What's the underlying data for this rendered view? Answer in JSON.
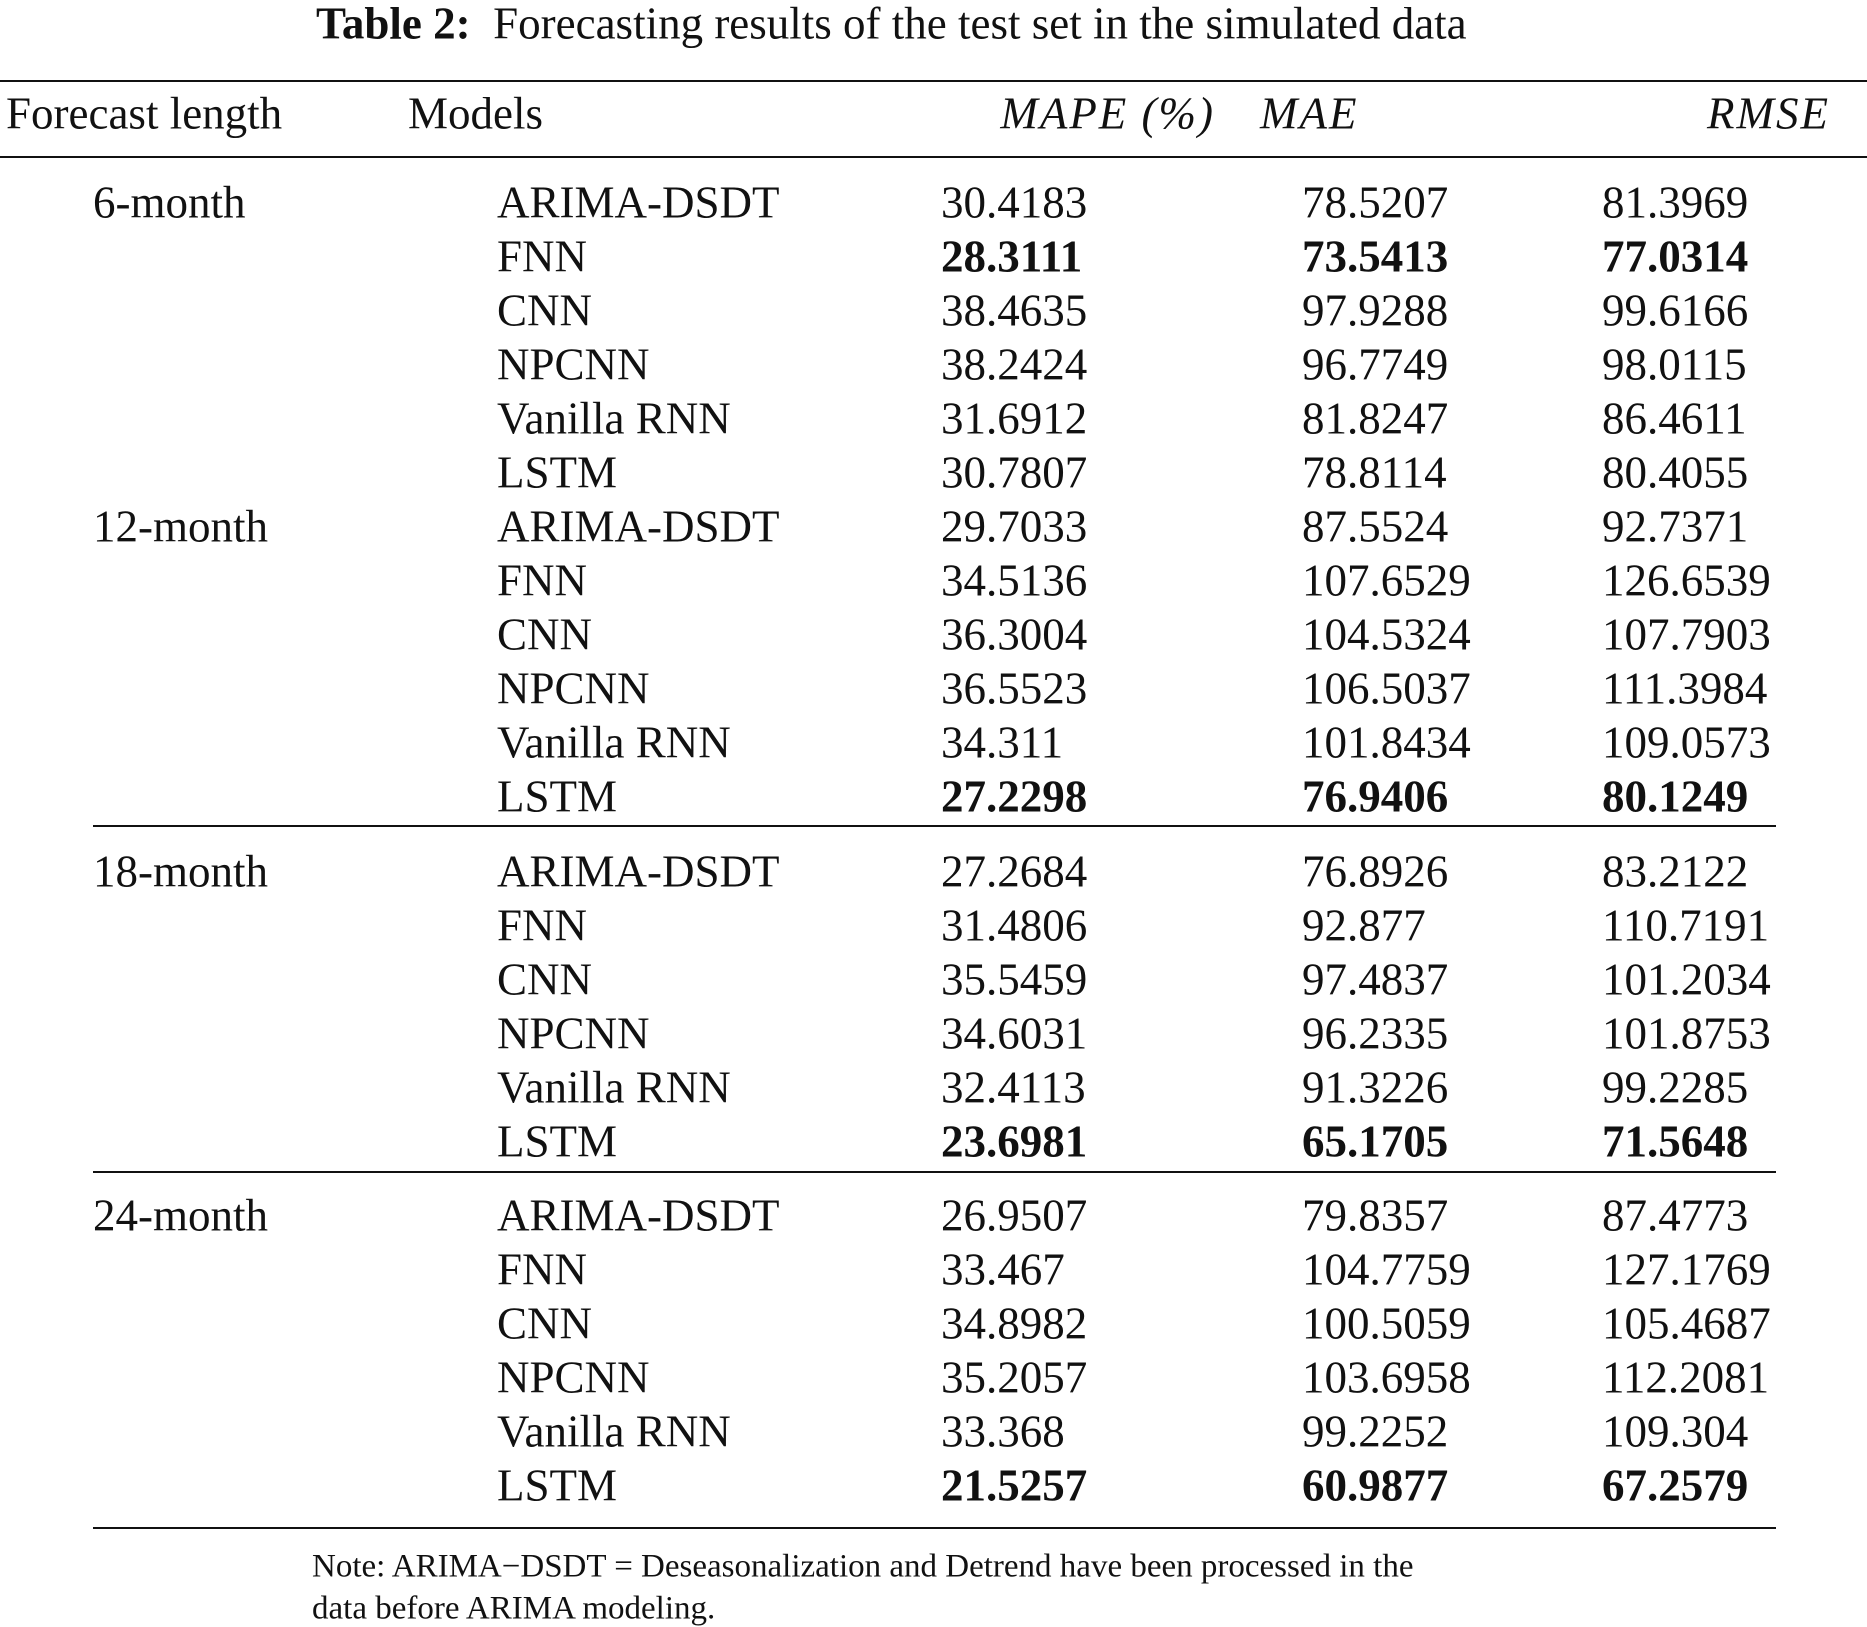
{
  "table": {
    "title_label": "Table 2:",
    "title_text": "Forecasting results of the test set in the simulated data",
    "header": [
      "Forecast length",
      "Models",
      "MAPE (%)",
      "MAE",
      "RMSE"
    ],
    "groups": [
      {
        "length": "6-month",
        "best_row": 1,
        "rows": [
          [
            "ARIMA-DSDT",
            30.4183,
            78.5207,
            81.3969
          ],
          [
            "FNN",
            28.3111,
            73.5413,
            77.0314
          ],
          [
            "CNN",
            38.4635,
            97.9288,
            99.6166
          ],
          [
            "NPCNN",
            38.2424,
            96.7749,
            98.0115
          ],
          [
            "Vanilla RNN",
            31.6912,
            81.8247,
            86.4611
          ],
          [
            "LSTM",
            30.7807,
            78.8114,
            80.4055
          ]
        ]
      },
      {
        "length": "12-month",
        "best_row": 5,
        "rows": [
          [
            "ARIMA-DSDT",
            29.7033,
            87.5524,
            92.7371
          ],
          [
            "FNN",
            34.5136,
            107.6529,
            126.6539
          ],
          [
            "CNN",
            36.3004,
            104.5324,
            107.7903
          ],
          [
            "NPCNN",
            36.5523,
            106.5037,
            111.3984
          ],
          [
            "Vanilla RNN",
            34.311,
            101.8434,
            109.0573
          ],
          [
            "LSTM",
            27.2298,
            76.9406,
            80.1249
          ]
        ]
      },
      {
        "length": "18-month",
        "best_row": 5,
        "rows": [
          [
            "ARIMA-DSDT",
            27.2684,
            76.8926,
            83.2122
          ],
          [
            "FNN",
            31.4806,
            92.877,
            110.7191
          ],
          [
            "CNN",
            35.5459,
            97.4837,
            101.2034
          ],
          [
            "NPCNN",
            34.6031,
            96.2335,
            101.8753
          ],
          [
            "Vanilla RNN",
            32.4113,
            91.3226,
            99.2285
          ],
          [
            "LSTM",
            23.6981,
            65.1705,
            71.5648
          ]
        ]
      },
      {
        "length": "24-month",
        "best_row": 5,
        "rows": [
          [
            "ARIMA-DSDT",
            26.9507,
            79.8357,
            87.4773
          ],
          [
            "FNN",
            33.467,
            104.7759,
            127.1769
          ],
          [
            "CNN",
            34.8982,
            100.5059,
            105.4687
          ],
          [
            "NPCNN",
            35.2057,
            103.6958,
            112.2081
          ],
          [
            "Vanilla RNN",
            33.368,
            99.2252,
            109.304
          ],
          [
            "LSTM",
            21.5257,
            60.9877,
            67.2579
          ]
        ]
      }
    ],
    "note": [
      "Note: ARIMA−DSDT = Deseasonalization and Detrend have been processed in the",
      "data before ARIMA modeling."
    ]
  }
}
